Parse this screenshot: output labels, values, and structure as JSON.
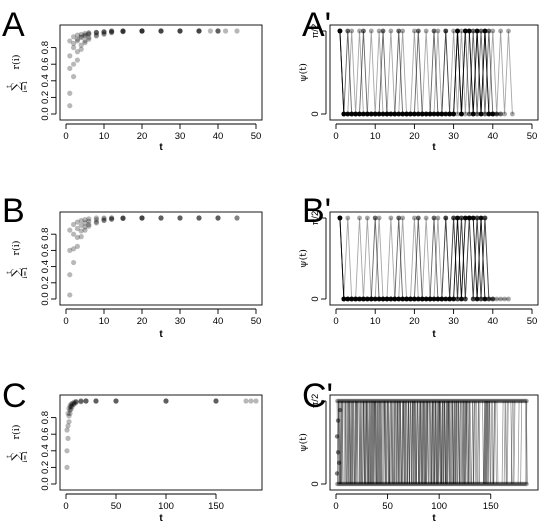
{
  "chart_data": [
    {
      "panel": "A",
      "type": "scatter",
      "connected": false,
      "xlabel": "t",
      "ylabel_sum_top": "t",
      "ylabel_sum_bottom": "i=1",
      "ylabel_func": "r(i)",
      "xlim": [
        0,
        50
      ],
      "ylim": [
        0,
        1
      ],
      "xticks": [
        0,
        10,
        20,
        30,
        40,
        50
      ],
      "yticks": [
        0.0,
        0.2,
        0.4,
        0.6,
        0.8
      ],
      "xtick_labels": [
        "0",
        "10",
        "20",
        "30",
        "40",
        "50"
      ],
      "ytick_labels": [
        "0.0",
        "0.2",
        "0.4",
        "0.6",
        "0.8"
      ],
      "series": [
        {
          "x": [
            1,
            2,
            3,
            4,
            5,
            6,
            8,
            10,
            12,
            15,
            20,
            25,
            30,
            35,
            40
          ],
          "y": [
            0.88,
            0.93,
            0.95,
            0.96,
            0.97,
            0.98,
            0.985,
            0.99,
            0.995,
            1.0,
            1.0,
            1.0,
            1.0,
            1.0,
            1.0
          ]
        },
        {
          "x": [
            1,
            2,
            3,
            4,
            5,
            6,
            8,
            10,
            12,
            15,
            20,
            25,
            30,
            35,
            40,
            42
          ],
          "y": [
            0.1,
            0.45,
            0.65,
            0.78,
            0.86,
            0.9,
            0.94,
            0.96,
            0.98,
            0.99,
            1.0,
            1.0,
            1.0,
            1.0,
            1.0,
            1.0
          ]
        },
        {
          "x": [
            1,
            2,
            3,
            4,
            5,
            6,
            8,
            10,
            12,
            15,
            20,
            25,
            30,
            35,
            40,
            45
          ],
          "y": [
            0.25,
            0.6,
            0.75,
            0.83,
            0.88,
            0.92,
            0.95,
            0.97,
            0.985,
            0.995,
            1.0,
            1.0,
            1.0,
            1.0,
            1.0,
            1.0
          ]
        },
        {
          "x": [
            1,
            2,
            3,
            4,
            5,
            6,
            8,
            10,
            12,
            15,
            20
          ],
          "y": [
            0.55,
            0.8,
            0.88,
            0.92,
            0.94,
            0.96,
            0.98,
            0.99,
            1.0,
            1.0,
            1.0
          ]
        },
        {
          "x": [
            1,
            2,
            3,
            4,
            5,
            6,
            8,
            10,
            12,
            15,
            20,
            25,
            30,
            35,
            38
          ],
          "y": [
            0.7,
            0.85,
            0.9,
            0.93,
            0.95,
            0.97,
            0.98,
            0.99,
            1.0,
            1.0,
            1.0,
            1.0,
            1.0,
            1.0,
            1.0
          ]
        }
      ]
    },
    {
      "panel": "A'",
      "type": "line",
      "connected": true,
      "xlabel": "t",
      "ylabel": "ψ(t)",
      "xlim": [
        0,
        50
      ],
      "ylim": [
        0,
        1.5708
      ],
      "xticks": [
        0,
        10,
        20,
        30,
        40,
        50
      ],
      "yticks": [
        0,
        1.5708
      ],
      "xtick_labels": [
        "0",
        "10",
        "20",
        "30",
        "40",
        "50"
      ],
      "ytick_labels": [
        "0",
        "π/2"
      ],
      "series": [
        {
          "x": [
            1,
            2,
            3,
            4,
            5,
            6,
            7,
            8,
            9,
            10,
            11,
            12,
            13,
            14,
            15,
            16,
            17,
            18,
            19,
            20,
            21,
            22,
            23,
            24,
            25,
            26,
            27,
            28,
            29,
            30,
            31,
            32,
            33,
            34,
            35,
            36,
            37,
            38,
            39,
            40
          ],
          "y": [
            1.5708,
            0,
            0,
            0,
            0,
            0,
            0,
            0,
            0,
            0,
            0,
            0,
            0,
            0,
            0,
            0,
            0,
            0,
            0,
            0,
            0,
            0,
            0,
            0,
            0,
            0,
            0,
            0,
            0,
            0,
            1.5708,
            0,
            1.5708,
            1.5708,
            0,
            1.5708,
            0,
            1.5708,
            0,
            0
          ]
        },
        {
          "x": [
            1,
            2,
            3,
            4,
            5,
            6,
            7,
            8,
            9,
            10,
            11,
            12,
            13,
            14,
            15,
            16,
            17,
            18,
            19,
            20,
            21,
            22,
            23,
            24,
            25,
            26,
            27,
            28,
            29,
            30,
            31,
            32,
            33,
            34,
            35,
            36,
            37,
            38,
            39,
            40,
            41,
            42,
            43,
            44,
            45
          ],
          "y": [
            1.5708,
            0,
            0,
            1.5708,
            0,
            1.5708,
            0,
            0,
            1.5708,
            0,
            1.5708,
            0,
            0,
            1.5708,
            0,
            0,
            1.5708,
            0,
            0,
            1.5708,
            0,
            0,
            1.5708,
            0,
            0,
            1.5708,
            0,
            1.5708,
            0,
            1.5708,
            0,
            1.5708,
            0,
            1.5708,
            0,
            1.5708,
            0,
            1.5708,
            0,
            1.5708,
            0,
            1.5708,
            0,
            1.5708,
            0
          ]
        },
        {
          "x": [
            1,
            2,
            3,
            4,
            5,
            6,
            7,
            8,
            9,
            10,
            11,
            12,
            13,
            14,
            15,
            16,
            17,
            18,
            19,
            20,
            21,
            22,
            23,
            24,
            25,
            26,
            27,
            28,
            29,
            30,
            31,
            32,
            33,
            34,
            35,
            36,
            37,
            38,
            39,
            40,
            41,
            42
          ],
          "y": [
            1.5708,
            0,
            1.5708,
            0,
            0,
            0,
            1.5708,
            0,
            0,
            0,
            0,
            1.5708,
            0,
            0,
            0,
            1.5708,
            0,
            0,
            0,
            0,
            1.5708,
            0,
            0,
            0,
            1.5708,
            0,
            0,
            1.5708,
            0,
            0,
            1.5708,
            0,
            1.5708,
            0,
            1.5708,
            0,
            1.5708,
            0,
            1.5708,
            0,
            0,
            0
          ]
        }
      ]
    },
    {
      "panel": "B",
      "type": "scatter",
      "connected": false,
      "xlabel": "t",
      "ylabel_sum_top": "t",
      "ylabel_sum_bottom": "i=1",
      "ylabel_func": "r(i)",
      "xlim": [
        0,
        50
      ],
      "ylim": [
        0,
        1
      ],
      "xticks": [
        0,
        10,
        20,
        30,
        40,
        50
      ],
      "yticks": [
        0.0,
        0.2,
        0.4,
        0.6,
        0.8
      ],
      "xtick_labels": [
        "0",
        "10",
        "20",
        "30",
        "40",
        "50"
      ],
      "ytick_labels": [
        "0.0",
        "0.2",
        "0.4",
        "0.6",
        "0.8"
      ],
      "series": [
        {
          "x": [
            1,
            2,
            3,
            4,
            5,
            6,
            8,
            10,
            12,
            15,
            20,
            25,
            30,
            35,
            40
          ],
          "y": [
            0.05,
            0.45,
            0.65,
            0.77,
            0.85,
            0.9,
            0.94,
            0.97,
            0.985,
            0.995,
            1.0,
            1.0,
            1.0,
            1.0,
            1.0
          ]
        },
        {
          "x": [
            1,
            2,
            3,
            4,
            5,
            6,
            8,
            10,
            12,
            15,
            20,
            25,
            30,
            35,
            40,
            45
          ],
          "y": [
            0.3,
            0.62,
            0.76,
            0.84,
            0.89,
            0.92,
            0.95,
            0.97,
            0.985,
            0.995,
            1.0,
            1.0,
            1.0,
            1.0,
            1.0,
            1.0
          ]
        },
        {
          "x": [
            1,
            2,
            3,
            4,
            5,
            6,
            8,
            10,
            12,
            15,
            20,
            25,
            30,
            35,
            40,
            45
          ],
          "y": [
            0.6,
            0.8,
            0.87,
            0.91,
            0.94,
            0.96,
            0.98,
            0.99,
            1.0,
            1.0,
            1.0,
            1.0,
            1.0,
            1.0,
            1.0,
            1.0
          ]
        },
        {
          "x": [
            1,
            2,
            3,
            4,
            5,
            6,
            8,
            10,
            12,
            15,
            20
          ],
          "y": [
            0.85,
            0.92,
            0.95,
            0.97,
            0.98,
            0.99,
            1.0,
            1.0,
            1.0,
            1.0,
            1.0
          ]
        }
      ]
    },
    {
      "panel": "B'",
      "type": "line",
      "connected": true,
      "xlabel": "t",
      "ylabel": "ψ(t)",
      "xlim": [
        0,
        50
      ],
      "ylim": [
        0,
        1.5708
      ],
      "xticks": [
        0,
        10,
        20,
        30,
        40,
        50
      ],
      "yticks": [
        0,
        1.5708
      ],
      "xtick_labels": [
        "0",
        "10",
        "20",
        "30",
        "40",
        "50"
      ],
      "ytick_labels": [
        "0",
        "π/2"
      ],
      "series": [
        {
          "x": [
            1,
            2,
            3,
            4,
            5,
            6,
            7,
            8,
            9,
            10,
            11,
            12,
            13,
            14,
            15,
            16,
            17,
            18,
            19,
            20,
            21,
            22,
            23,
            24,
            25,
            26,
            27,
            28,
            29,
            30,
            31,
            32,
            33,
            34,
            35,
            36,
            37,
            38
          ],
          "y": [
            1.5708,
            0,
            0,
            0,
            0,
            0,
            0,
            0,
            0,
            0,
            0,
            0,
            0,
            0,
            0,
            0,
            0,
            0,
            0,
            0,
            0,
            0,
            0,
            0,
            0,
            0,
            0,
            0,
            0,
            0,
            1.5708,
            0,
            1.5708,
            1.5708,
            1.5708,
            0,
            1.5708,
            0
          ]
        },
        {
          "x": [
            1,
            2,
            3,
            4,
            5,
            6,
            7,
            8,
            9,
            10,
            11,
            12,
            13,
            14,
            15,
            16,
            17,
            18,
            19,
            20,
            21,
            22,
            23,
            24,
            25,
            26,
            27,
            28,
            29,
            30,
            31,
            32,
            33,
            34,
            35,
            36,
            37,
            38,
            39,
            40,
            41,
            42,
            43,
            44
          ],
          "y": [
            1.5708,
            0,
            1.5708,
            0,
            0,
            1.5708,
            0,
            1.5708,
            0,
            0,
            1.5708,
            0,
            0,
            1.5708,
            0,
            0,
            1.5708,
            0,
            0,
            1.5708,
            0,
            0,
            1.5708,
            0,
            0,
            1.5708,
            0,
            1.5708,
            0,
            1.5708,
            0,
            1.5708,
            0,
            1.5708,
            0,
            1.5708,
            0,
            1.5708,
            0,
            0,
            0,
            0,
            0,
            0
          ]
        },
        {
          "x": [
            1,
            2,
            3,
            4,
            5,
            6,
            7,
            8,
            9,
            10,
            11,
            12,
            13,
            14,
            15,
            16,
            17,
            18,
            19,
            20,
            21,
            22,
            23,
            24,
            25,
            26,
            27,
            28,
            29,
            30,
            31,
            32,
            33,
            34,
            35,
            36,
            37,
            38,
            39,
            40
          ],
          "y": [
            1.5708,
            0,
            0,
            0,
            0,
            0,
            0,
            0,
            0,
            1.5708,
            0,
            0,
            0,
            0,
            0,
            1.5708,
            0,
            0,
            0,
            0,
            1.5708,
            0,
            0,
            0,
            1.5708,
            0,
            0,
            1.5708,
            0,
            1.5708,
            0,
            1.5708,
            0,
            1.5708,
            0,
            1.5708,
            0,
            1.5708,
            0,
            0
          ]
        }
      ]
    },
    {
      "panel": "C",
      "type": "scatter",
      "connected": false,
      "xlabel": "t",
      "ylabel_sum_top": "t",
      "ylabel_sum_bottom": "i=1",
      "ylabel_func": "r(i)",
      "xlim": [
        0,
        190
      ],
      "ylim": [
        0,
        1
      ],
      "xticks": [
        0,
        50,
        100,
        150
      ],
      "yticks": [
        0.0,
        0.2,
        0.4,
        0.6,
        0.8
      ],
      "xtick_labels": [
        "0",
        "50",
        "100",
        "150"
      ],
      "ytick_labels": [
        "0.0",
        "0.2",
        "0.4",
        "0.6",
        "0.8"
      ],
      "series": [
        {
          "x": [
            1,
            2,
            3,
            4,
            5,
            6,
            8,
            10,
            15,
            20,
            30,
            50,
            100,
            150,
            185
          ],
          "y": [
            0.2,
            0.55,
            0.75,
            0.85,
            0.9,
            0.93,
            0.96,
            0.98,
            0.99,
            1.0,
            1.0,
            1.0,
            1.0,
            1.0,
            1.0
          ]
        },
        {
          "x": [
            1,
            2,
            3,
            4,
            5,
            6,
            8,
            10,
            15,
            20,
            30,
            50,
            100,
            150,
            190
          ],
          "y": [
            0.4,
            0.7,
            0.82,
            0.89,
            0.93,
            0.95,
            0.97,
            0.99,
            1.0,
            1.0,
            1.0,
            1.0,
            1.0,
            1.0,
            1.0
          ]
        },
        {
          "x": [
            1,
            2,
            3,
            4,
            5,
            6,
            8,
            10,
            15,
            20,
            30,
            50,
            100,
            150,
            180
          ],
          "y": [
            0.65,
            0.85,
            0.91,
            0.94,
            0.96,
            0.97,
            0.985,
            0.995,
            1.0,
            1.0,
            1.0,
            1.0,
            1.0,
            1.0,
            1.0
          ]
        }
      ]
    },
    {
      "panel": "C'",
      "type": "line",
      "connected": true,
      "xlabel": "t",
      "ylabel": "ψ(t)",
      "xlim": [
        0,
        190
      ],
      "ylim": [
        0,
        1.5708
      ],
      "xticks": [
        0,
        50,
        100,
        150
      ],
      "yticks": [
        0,
        1.5708
      ],
      "xtick_labels": [
        "0",
        "50",
        "100",
        "150"
      ],
      "ytick_labels": [
        "0",
        "π/2"
      ],
      "series": [
        {
          "x_range": [
            1,
            185
          ],
          "pattern": "oscillating between 0 and π/2, dense up to t≈120 then sparser"
        }
      ]
    }
  ]
}
